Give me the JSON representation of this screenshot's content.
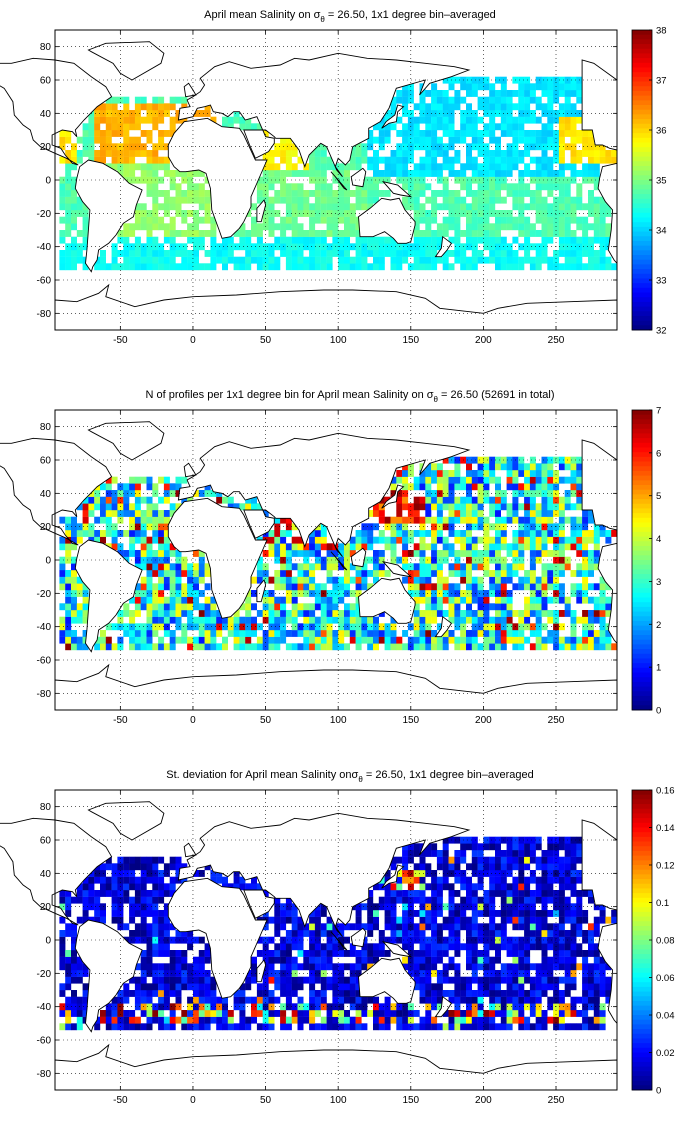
{
  "chart_data": [
    {
      "type": "heatmap",
      "title_prefix": "April mean Salinity on σ",
      "title_sub": "θ",
      "title_suffix": " = 26.50, 1x1 degree bin–averaged",
      "xticks": [
        "-50",
        "0",
        "50",
        "100",
        "150",
        "200",
        "250"
      ],
      "yticks": [
        "80",
        "60",
        "40",
        "20",
        "0",
        "-20",
        "-40",
        "-60",
        "-80"
      ],
      "xlim": [
        -95,
        292
      ],
      "ylim": [
        -90,
        90
      ],
      "grid": true,
      "colorbar": {
        "range": [
          32,
          38
        ],
        "ticks": [
          "38",
          "37",
          "36",
          "35",
          "34",
          "33",
          "32"
        ],
        "colormap": "jet"
      }
    },
    {
      "type": "heatmap",
      "title_prefix": "N of profiles per 1x1 degree bin for April mean Salinity on σ",
      "title_sub": "θ",
      "title_suffix": " = 26.50 (52691 in total)",
      "xticks": [
        "-50",
        "0",
        "50",
        "100",
        "150",
        "200",
        "250"
      ],
      "yticks": [
        "80",
        "60",
        "40",
        "20",
        "0",
        "-20",
        "-40",
        "-60",
        "-80"
      ],
      "xlim": [
        -95,
        292
      ],
      "ylim": [
        -90,
        90
      ],
      "grid": true,
      "colorbar": {
        "range": [
          0,
          7
        ],
        "ticks": [
          "7",
          "6",
          "5",
          "4",
          "3",
          "2",
          "1",
          "0"
        ],
        "colormap": "jet"
      }
    },
    {
      "type": "heatmap",
      "title_prefix": "St. deviation for April mean Salinity onσ",
      "title_sub": "θ",
      "title_suffix": " = 26.50, 1x1 degree bin–averaged",
      "xticks": [
        "-50",
        "0",
        "50",
        "100",
        "150",
        "200",
        "250"
      ],
      "yticks": [
        "80",
        "60",
        "40",
        "20",
        "0",
        "-20",
        "-40",
        "-60",
        "-80"
      ],
      "xlim": [
        -95,
        292
      ],
      "ylim": [
        -90,
        90
      ],
      "grid": true,
      "colorbar": {
        "range": [
          0,
          0.16
        ],
        "ticks": [
          "0.16",
          "0.14",
          "0.12",
          "0.1",
          "0.08",
          "0.06",
          "0.04",
          "0.02",
          "0"
        ],
        "colormap": "jet"
      }
    }
  ]
}
